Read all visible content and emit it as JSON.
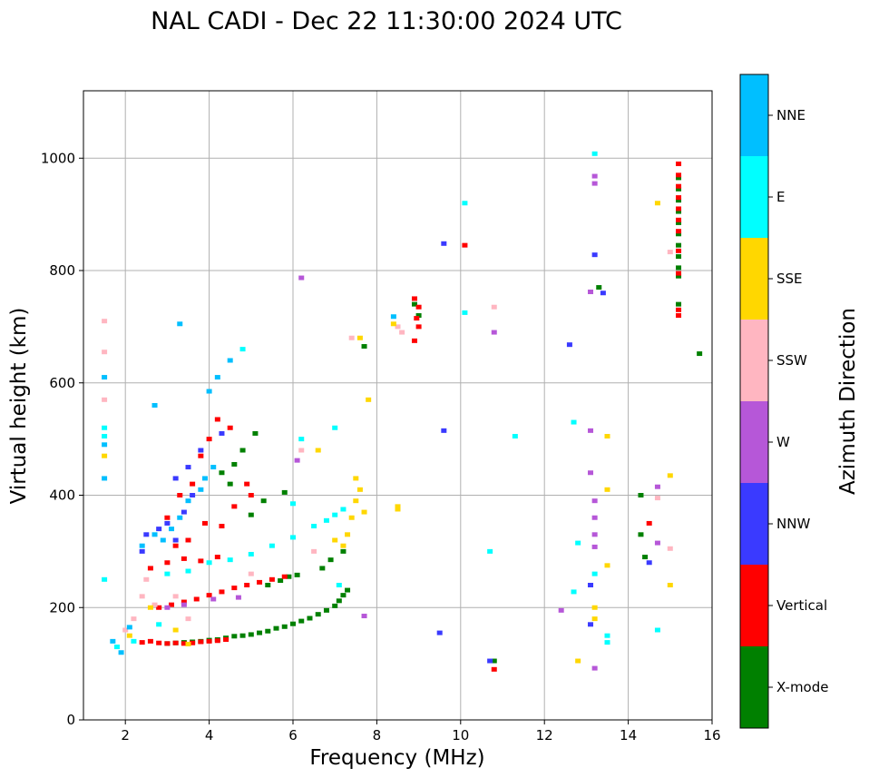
{
  "chart_data": {
    "type": "scatter",
    "title": "NAL CADI - Dec 22 11:30:00 2024 UTC",
    "xlabel": "Frequency (MHz)",
    "ylabel": "Virtual height (km)",
    "xlim": [
      1,
      16
    ],
    "ylim": [
      0,
      1120
    ],
    "xticks": [
      2,
      4,
      6,
      8,
      10,
      12,
      14,
      16
    ],
    "yticks": [
      0,
      200,
      400,
      600,
      800,
      1000
    ],
    "grid": true,
    "colorbar": {
      "title": "Azimuth Direction",
      "categories": [
        {
          "name": "X-mode",
          "color": "#008000"
        },
        {
          "name": "Vertical",
          "color": "#ff0000"
        },
        {
          "name": "NNW",
          "color": "#3a3aff"
        },
        {
          "name": "W",
          "color": "#b657d8"
        },
        {
          "name": "SSW",
          "color": "#ffb6c1"
        },
        {
          "name": "SSE",
          "color": "#ffd700"
        },
        {
          "name": "E",
          "color": "#00ffff"
        },
        {
          "name": "NNE",
          "color": "#00bfff"
        }
      ]
    },
    "series": [
      {
        "name": "X-mode",
        "points": [
          [
            3.0,
            136
          ],
          [
            3.2,
            137
          ],
          [
            3.4,
            138
          ],
          [
            3.6,
            139
          ],
          [
            3.8,
            140
          ],
          [
            4.0,
            142
          ],
          [
            4.2,
            143
          ],
          [
            4.4,
            146
          ],
          [
            4.6,
            149
          ],
          [
            4.8,
            150
          ],
          [
            5.0,
            152
          ],
          [
            5.2,
            155
          ],
          [
            5.4,
            158
          ],
          [
            5.6,
            163
          ],
          [
            5.8,
            166
          ],
          [
            6.0,
            171
          ],
          [
            6.2,
            176
          ],
          [
            6.4,
            181
          ],
          [
            6.6,
            188
          ],
          [
            6.8,
            195
          ],
          [
            7.0,
            203
          ],
          [
            7.1,
            212
          ],
          [
            7.2,
            222
          ],
          [
            7.3,
            231
          ],
          [
            5.4,
            240
          ],
          [
            5.7,
            248
          ],
          [
            5.9,
            255
          ],
          [
            6.1,
            258
          ],
          [
            6.7,
            270
          ],
          [
            6.9,
            285
          ],
          [
            7.2,
            300
          ],
          [
            5.0,
            365
          ],
          [
            5.3,
            390
          ],
          [
            5.8,
            405
          ],
          [
            4.6,
            455
          ],
          [
            4.8,
            480
          ],
          [
            5.1,
            510
          ],
          [
            4.3,
            440
          ],
          [
            4.5,
            420
          ],
          [
            13.3,
            770
          ],
          [
            14.3,
            400
          ],
          [
            14.3,
            330
          ],
          [
            14.4,
            290
          ],
          [
            15.7,
            652
          ],
          [
            7.7,
            665
          ],
          [
            8.9,
            740
          ],
          [
            9.0,
            720
          ],
          [
            10.8,
            105
          ],
          [
            15.2,
            965
          ],
          [
            15.2,
            945
          ],
          [
            15.2,
            925
          ],
          [
            15.2,
            905
          ],
          [
            15.2,
            885
          ],
          [
            15.2,
            865
          ],
          [
            15.2,
            845
          ],
          [
            15.2,
            825
          ],
          [
            15.2,
            805
          ],
          [
            15.2,
            790
          ],
          [
            15.2,
            740
          ]
        ]
      },
      {
        "name": "Vertical",
        "points": [
          [
            2.4,
            138
          ],
          [
            2.6,
            140
          ],
          [
            2.8,
            137
          ],
          [
            3.0,
            136
          ],
          [
            3.2,
            137
          ],
          [
            3.4,
            136
          ],
          [
            3.6,
            137
          ],
          [
            3.8,
            139
          ],
          [
            4.0,
            140
          ],
          [
            4.2,
            141
          ],
          [
            4.4,
            143
          ],
          [
            2.8,
            200
          ],
          [
            3.1,
            205
          ],
          [
            3.4,
            210
          ],
          [
            3.7,
            215
          ],
          [
            4.0,
            222
          ],
          [
            4.3,
            228
          ],
          [
            4.6,
            235
          ],
          [
            4.9,
            240
          ],
          [
            5.2,
            245
          ],
          [
            5.5,
            250
          ],
          [
            5.8,
            255
          ],
          [
            2.6,
            270
          ],
          [
            3.0,
            280
          ],
          [
            3.4,
            287
          ],
          [
            3.8,
            283
          ],
          [
            4.2,
            290
          ],
          [
            3.2,
            310
          ],
          [
            3.5,
            320
          ],
          [
            3.9,
            350
          ],
          [
            4.3,
            345
          ],
          [
            4.6,
            380
          ],
          [
            5.0,
            400
          ],
          [
            4.9,
            420
          ],
          [
            3.0,
            360
          ],
          [
            3.3,
            400
          ],
          [
            3.6,
            420
          ],
          [
            3.8,
            470
          ],
          [
            4.0,
            500
          ],
          [
            4.2,
            535
          ],
          [
            4.5,
            520
          ],
          [
            8.9,
            750
          ],
          [
            9.0,
            735
          ],
          [
            8.95,
            715
          ],
          [
            9.0,
            700
          ],
          [
            8.9,
            675
          ],
          [
            10.1,
            845
          ],
          [
            10.8,
            90
          ],
          [
            14.5,
            350
          ],
          [
            15.2,
            990
          ],
          [
            15.2,
            970
          ],
          [
            15.2,
            950
          ],
          [
            15.2,
            930
          ],
          [
            15.2,
            910
          ],
          [
            15.2,
            890
          ],
          [
            15.2,
            870
          ],
          [
            15.2,
            835
          ],
          [
            15.2,
            795
          ],
          [
            15.2,
            730
          ],
          [
            15.2,
            720
          ]
        ]
      },
      {
        "name": "NNW",
        "points": [
          [
            2.5,
            330
          ],
          [
            2.8,
            340
          ],
          [
            3.0,
            350
          ],
          [
            3.2,
            320
          ],
          [
            3.4,
            370
          ],
          [
            3.6,
            400
          ],
          [
            3.2,
            430
          ],
          [
            3.5,
            450
          ],
          [
            3.8,
            480
          ],
          [
            2.4,
            300
          ],
          [
            9.6,
            515
          ],
          [
            9.6,
            848
          ],
          [
            9.5,
            155
          ],
          [
            10.7,
            105
          ],
          [
            12.6,
            668
          ],
          [
            13.2,
            828
          ],
          [
            13.4,
            760
          ],
          [
            13.1,
            240
          ],
          [
            13.1,
            170
          ],
          [
            14.5,
            280
          ],
          [
            4.3,
            510
          ]
        ]
      },
      {
        "name": "W",
        "points": [
          [
            3.0,
            200
          ],
          [
            3.4,
            205
          ],
          [
            4.1,
            215
          ],
          [
            4.7,
            218
          ],
          [
            6.2,
            787
          ],
          [
            6.1,
            462
          ],
          [
            10.8,
            690
          ],
          [
            12.4,
            195
          ],
          [
            13.2,
            968
          ],
          [
            13.2,
            955
          ],
          [
            13.1,
            762
          ],
          [
            13.1,
            515
          ],
          [
            13.1,
            440
          ],
          [
            13.2,
            390
          ],
          [
            13.2,
            360
          ],
          [
            13.2,
            330
          ],
          [
            13.2,
            308
          ],
          [
            13.2,
            92
          ],
          [
            14.7,
            415
          ],
          [
            14.7,
            315
          ],
          [
            7.7,
            185
          ]
        ]
      },
      {
        "name": "SSW",
        "points": [
          [
            1.5,
            710
          ],
          [
            1.5,
            655
          ],
          [
            1.5,
            570
          ],
          [
            2.0,
            160
          ],
          [
            2.2,
            180
          ],
          [
            2.5,
            250
          ],
          [
            2.4,
            220
          ],
          [
            2.7,
            205
          ],
          [
            3.2,
            220
          ],
          [
            3.5,
            180
          ],
          [
            5.0,
            260
          ],
          [
            6.2,
            480
          ],
          [
            6.5,
            300
          ],
          [
            7.4,
            680
          ],
          [
            8.5,
            700
          ],
          [
            8.6,
            690
          ],
          [
            10.8,
            735
          ],
          [
            15.0,
            305
          ],
          [
            15.0,
            833
          ],
          [
            14.7,
            395
          ]
        ]
      },
      {
        "name": "SSE",
        "points": [
          [
            1.5,
            470
          ],
          [
            2.1,
            150
          ],
          [
            2.6,
            200
          ],
          [
            3.2,
            160
          ],
          [
            3.5,
            135
          ],
          [
            6.6,
            480
          ],
          [
            7.3,
            330
          ],
          [
            7.4,
            360
          ],
          [
            7.5,
            390
          ],
          [
            7.6,
            410
          ],
          [
            7.7,
            370
          ],
          [
            7.5,
            430
          ],
          [
            7.0,
            320
          ],
          [
            7.2,
            310
          ],
          [
            8.5,
            380
          ],
          [
            8.5,
            375
          ],
          [
            7.8,
            570
          ],
          [
            14.7,
            920
          ],
          [
            15.0,
            435
          ],
          [
            15.0,
            240
          ],
          [
            13.5,
            505
          ],
          [
            13.5,
            410
          ],
          [
            13.5,
            275
          ],
          [
            13.2,
            200
          ],
          [
            13.2,
            180
          ],
          [
            12.8,
            105
          ],
          [
            7.6,
            680
          ],
          [
            8.4,
            705
          ]
        ]
      },
      {
        "name": "E",
        "points": [
          [
            1.5,
            250
          ],
          [
            1.5,
            520
          ],
          [
            1.5,
            505
          ],
          [
            1.8,
            130
          ],
          [
            2.2,
            140
          ],
          [
            2.8,
            170
          ],
          [
            3.0,
            260
          ],
          [
            3.5,
            265
          ],
          [
            4.0,
            280
          ],
          [
            4.5,
            285
          ],
          [
            5.0,
            295
          ],
          [
            5.5,
            310
          ],
          [
            6.0,
            325
          ],
          [
            6.5,
            345
          ],
          [
            6.8,
            355
          ],
          [
            7.0,
            365
          ],
          [
            7.2,
            375
          ],
          [
            6.2,
            500
          ],
          [
            7.0,
            520
          ],
          [
            7.1,
            240
          ],
          [
            6.0,
            385
          ],
          [
            10.1,
            920
          ],
          [
            10.1,
            725
          ],
          [
            10.7,
            300
          ],
          [
            11.3,
            505
          ],
          [
            12.7,
            530
          ],
          [
            12.8,
            315
          ],
          [
            12.7,
            228
          ],
          [
            13.2,
            1008
          ],
          [
            13.2,
            260
          ],
          [
            13.5,
            150
          ],
          [
            13.5,
            138
          ],
          [
            14.7,
            160
          ],
          [
            4.8,
            660
          ]
        ]
      },
      {
        "name": "NNE",
        "points": [
          [
            1.5,
            610
          ],
          [
            1.5,
            430
          ],
          [
            1.5,
            490
          ],
          [
            1.7,
            140
          ],
          [
            1.9,
            120
          ],
          [
            2.1,
            165
          ],
          [
            2.4,
            310
          ],
          [
            2.7,
            330
          ],
          [
            2.9,
            320
          ],
          [
            3.1,
            340
          ],
          [
            3.3,
            360
          ],
          [
            3.5,
            390
          ],
          [
            3.8,
            410
          ],
          [
            3.9,
            430
          ],
          [
            4.1,
            450
          ],
          [
            4.0,
            585
          ],
          [
            4.2,
            610
          ],
          [
            4.5,
            640
          ],
          [
            2.7,
            560
          ],
          [
            3.3,
            705
          ],
          [
            8.4,
            718
          ]
        ]
      }
    ]
  }
}
